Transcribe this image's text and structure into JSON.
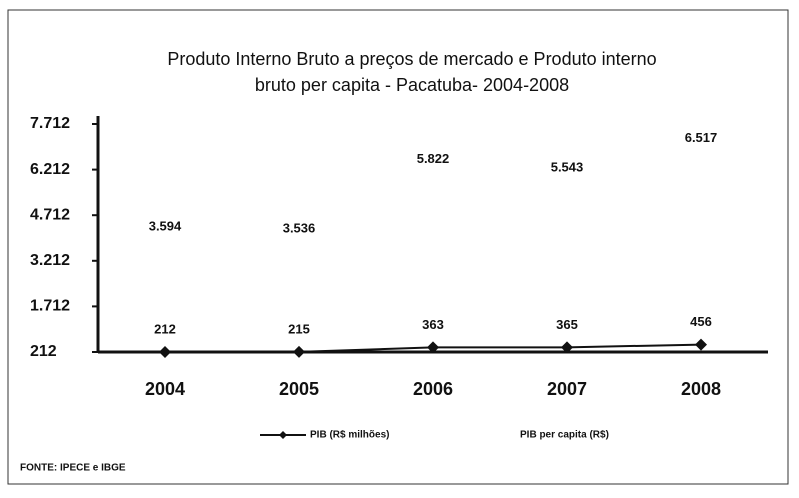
{
  "chart_data": {
    "type": "line",
    "title": [
      "Produto Interno Bruto a preços de mercado  e   Produto interno",
      "bruto per capita - Pacatuba- 2004-2008"
    ],
    "categories": [
      "2004",
      "2005",
      "2006",
      "2007",
      "2008"
    ],
    "series": [
      {
        "name": "PIB (R$ milhões)",
        "color": "#111111",
        "values": [
          212,
          215,
          363,
          365,
          456
        ]
      },
      {
        "name": "PIB per capita (R$)",
        "color": "none",
        "values": [
          3594,
          3536,
          5822,
          5543,
          6517
        ],
        "value_labels": [
          "3.594",
          "3.536",
          "5.822",
          "5.543",
          "6.517"
        ]
      }
    ],
    "ylim": [
      212,
      7712
    ],
    "yticks": [
      212,
      {
        "value": 1712,
        "label": "1.712"
      },
      {
        "value": 3212,
        "label": "3.212"
      },
      {
        "value": 4712,
        "label": "4.712"
      },
      {
        "value": 6212,
        "label": "6.212"
      },
      {
        "value": 7712,
        "label": "7.712"
      }
    ],
    "source": "FONTE: IPECE e IBGE"
  }
}
